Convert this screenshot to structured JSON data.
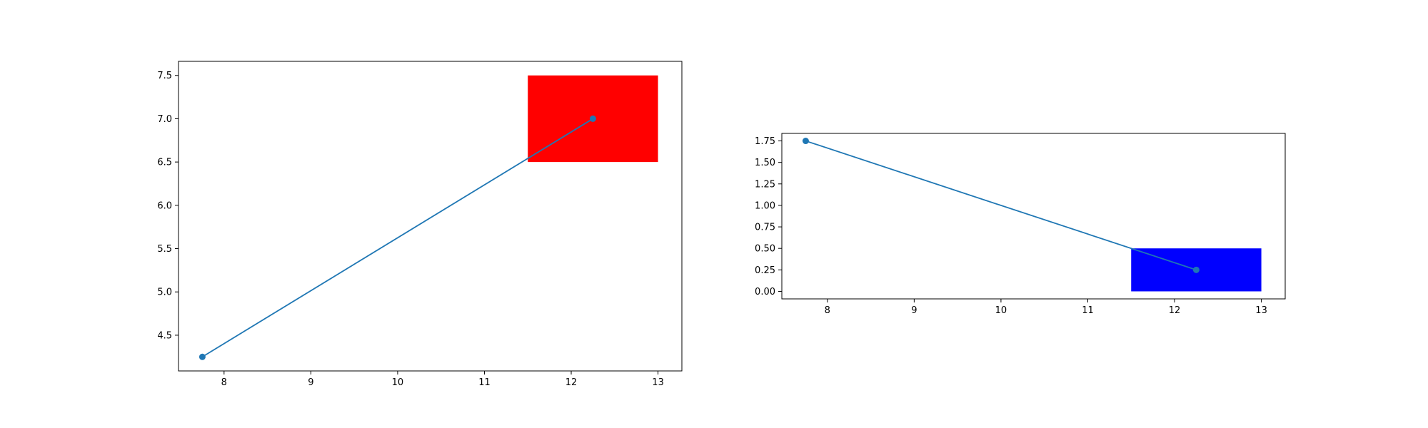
{
  "chart_data": [
    {
      "type": "line",
      "title": "",
      "xlabel": "",
      "ylabel": "",
      "xlim": [
        7.475,
        13.275
      ],
      "ylim": [
        4.0875,
        7.6625
      ],
      "xticks": [
        8,
        9,
        10,
        11,
        12,
        13
      ],
      "xtick_labels": [
        "8",
        "9",
        "10",
        "11",
        "12",
        "13"
      ],
      "yticks": [
        4.5,
        5.0,
        5.5,
        6.0,
        6.5,
        7.0,
        7.5
      ],
      "ytick_labels": [
        "4.5",
        "5.0",
        "5.5",
        "6.0",
        "6.5",
        "7.0",
        "7.5"
      ],
      "grid": false,
      "series": [
        {
          "x": [
            7.75,
            12.25
          ],
          "y": [
            4.25,
            7.0
          ],
          "color": "#1f77b4",
          "marker": "circle"
        }
      ],
      "rectangles": [
        {
          "x": [
            11.5,
            13.0
          ],
          "y": [
            6.5,
            7.5
          ],
          "color": "#ff0000"
        }
      ]
    },
    {
      "type": "line",
      "title": "",
      "xlabel": "",
      "ylabel": "",
      "xlim": [
        7.475,
        13.275
      ],
      "ylim": [
        -0.0875,
        1.8375
      ],
      "xticks": [
        8,
        9,
        10,
        11,
        12,
        13
      ],
      "xtick_labels": [
        "8",
        "9",
        "10",
        "11",
        "12",
        "13"
      ],
      "yticks": [
        0.0,
        0.25,
        0.5,
        0.75,
        1.0,
        1.25,
        1.5,
        1.75
      ],
      "ytick_labels": [
        "0.00",
        "0.25",
        "0.50",
        "0.75",
        "1.00",
        "1.25",
        "1.50",
        "1.75"
      ],
      "grid": false,
      "series": [
        {
          "x": [
            7.75,
            12.25
          ],
          "y": [
            1.75,
            0.25
          ],
          "color": "#1f77b4",
          "marker": "circle"
        }
      ],
      "rectangles": [
        {
          "x": [
            11.5,
            13.0
          ],
          "y": [
            0.0,
            0.5
          ],
          "color": "#0000ff"
        }
      ]
    }
  ]
}
